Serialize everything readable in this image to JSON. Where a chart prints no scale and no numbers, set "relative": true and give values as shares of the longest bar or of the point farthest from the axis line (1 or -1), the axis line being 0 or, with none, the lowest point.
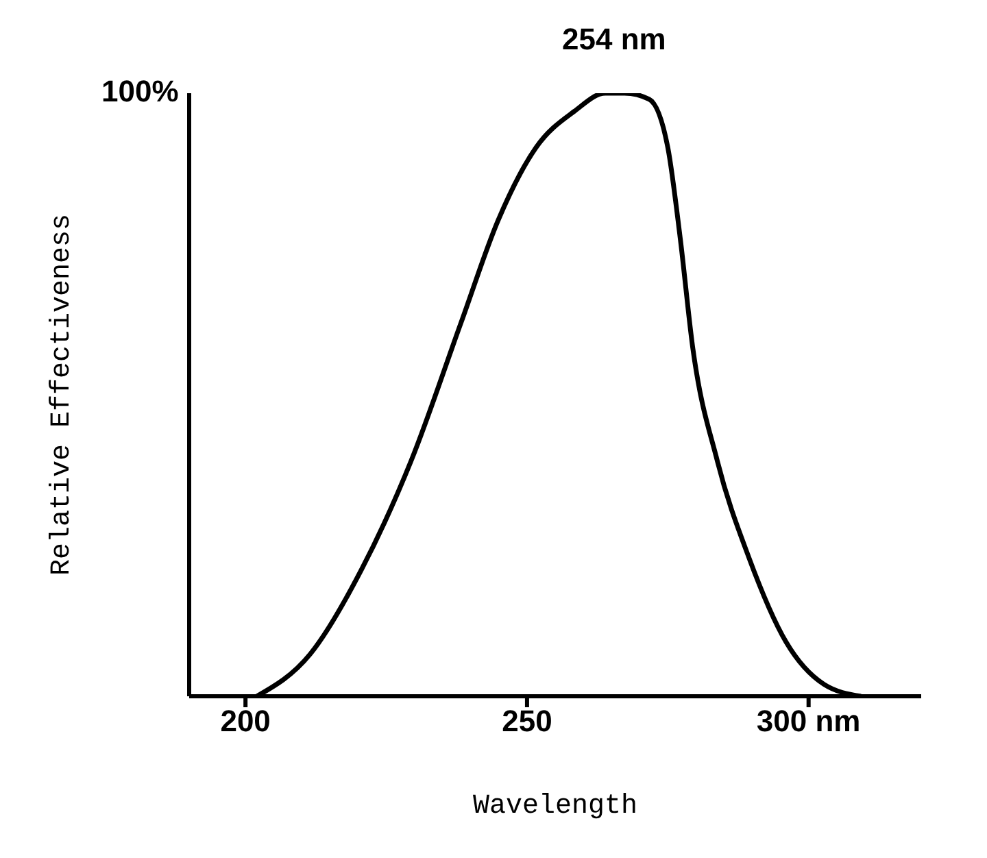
{
  "chart_data": {
    "type": "line",
    "xlabel": "Wavelength",
    "ylabel": "Relative Effectiveness",
    "annotations": [
      "254 nm",
      "100%"
    ],
    "relative": true,
    "x": [
      202,
      211.5,
      220.6,
      229.4,
      238.3,
      244.9,
      251.6,
      258.4,
      263.9,
      267.3,
      271.7,
      275,
      277.2,
      279.4,
      283.8,
      289.4,
      296,
      302.7,
      309.3
    ],
    "series": [
      {
        "color": "#000000",
        "values": [
          0,
          0.07,
          0.21,
          0.39,
          0.62,
          0.79,
          0.91,
          0.97,
          1,
          1,
          0.99,
          0.91,
          0.76,
          0.58,
          0.39,
          0.23,
          0.09,
          0.02,
          0
        ]
      }
    ],
    "xlim": [
      190,
      320
    ],
    "xticks": [
      200,
      250,
      {
        "value": 300,
        "label": "300 nm"
      }
    ],
    "grid": false,
    "legend": false,
    "marker": "none",
    "line_style": "solid"
  }
}
